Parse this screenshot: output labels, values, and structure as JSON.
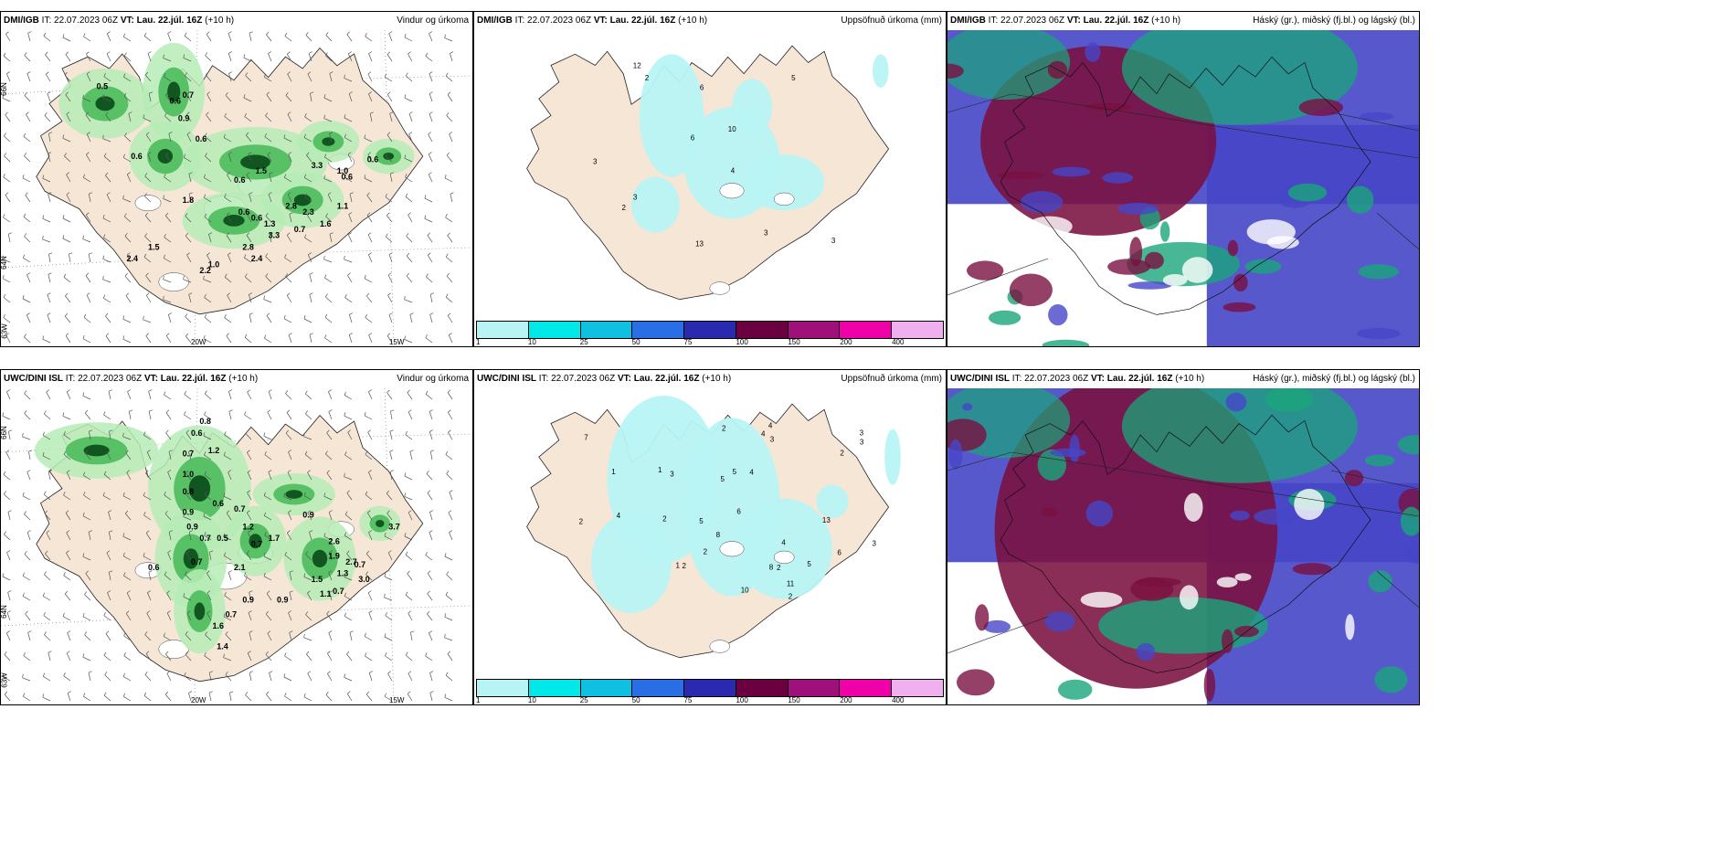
{
  "panels": [
    {
      "id": "top-left",
      "model": "DMI/IGB",
      "it_label": "IT:",
      "it_value": "22.07.2023 06Z",
      "vt_label": "VT:",
      "vt_value": "Lau. 22.júl. 16Z",
      "lead": "(+10 h)",
      "product": "Vindur og úrkoma",
      "lat_labels": [
        "66N",
        "64N",
        "63W"
      ],
      "lon_labels": [
        "20W",
        "15W"
      ],
      "values": [
        "0.5",
        "0.6",
        "0.7",
        "0.9",
        "0.6",
        "0.6",
        "1.8",
        "3.3",
        "1.0",
        "0.6",
        "0.6",
        "1.5",
        "0.6",
        "0.6",
        "1.3",
        "2.8",
        "3.3",
        "2.3",
        "1.1",
        "0.7",
        "1.6",
        "0.6",
        "2.8",
        "2.4",
        "2.2",
        "1.0",
        "1.5",
        "2.4"
      ]
    },
    {
      "id": "top-middle",
      "model": "DMI/IGB",
      "it_label": "IT:",
      "it_value": "22.07.2023 06Z",
      "vt_label": "VT:",
      "vt_value": "Lau. 22.júl. 16Z",
      "lead": "(+10 h)",
      "product": "Uppsöfnuð úrkoma (mm)",
      "values": [
        "2",
        "3",
        "4",
        "3",
        "2",
        "12",
        "13",
        "6",
        "3",
        "10",
        "6",
        "3",
        "5"
      ],
      "legend": [
        "1",
        "10",
        "25",
        "50",
        "75",
        "100",
        "150",
        "200",
        "400"
      ],
      "legend_colors": [
        "#b8f4f4",
        "#00e8e8",
        "#10c0e0",
        "#2a6ee6",
        "#2a2ab0",
        "#6a0040",
        "#a0107a",
        "#f000a8",
        "#f0b0f0"
      ]
    },
    {
      "id": "top-right",
      "model": "DMI/IGB",
      "it_label": "IT:",
      "it_value": "22.07.2023 06Z",
      "vt_label": "VT:",
      "vt_value": "Lau. 22.júl. 16Z",
      "lead": "(+10 h)",
      "product": "Háský (gr.), miðský (fj.bl.) og lágský (bl.)"
    },
    {
      "id": "bottom-left",
      "model": "UWC/DINI ISL",
      "it_label": "IT:",
      "it_value": "22.07.2023 06Z",
      "vt_label": "VT:",
      "vt_value": "Lau. 22.júl. 16Z",
      "lead": "(+10 h)",
      "product": "Vindur og úrkoma",
      "lat_labels": [
        "66N",
        "64N",
        "63W"
      ],
      "lon_labels": [
        "20W",
        "15W"
      ],
      "values": [
        "0.8",
        "0.6",
        "0.7",
        "1.2",
        "1.0",
        "0.8",
        "0.9",
        "0.9",
        "0.7",
        "0.6",
        "0.5",
        "0.7",
        "0.6",
        "0.7",
        "1.2",
        "0.7",
        "1.7",
        "2.1",
        "0.9",
        "2.6",
        "1.9",
        "0.7",
        "1.3",
        "2.7",
        "3.0",
        "0.9",
        "1.1",
        "0.9",
        "1.5",
        "0.7",
        "1.6",
        "1.4",
        "0.7",
        "3.7"
      ]
    },
    {
      "id": "bottom-middle",
      "model": "UWC/DINI ISL",
      "it_label": "IT:",
      "it_value": "22.07.2023 06Z",
      "vt_label": "VT:",
      "vt_value": "Lau. 22.júl. 16Z",
      "lead": "(+10 h)",
      "product": "Uppsöfnuð úrkoma (mm)",
      "values": [
        "1",
        "2",
        "2",
        "3",
        "4",
        "3",
        "1",
        "5",
        "5",
        "7",
        "6",
        "2",
        "2",
        "4",
        "3",
        "2",
        "4",
        "6",
        "11",
        "8",
        "5",
        "4",
        "10",
        "3",
        "5",
        "2",
        "8",
        "2",
        "1",
        "3",
        "4",
        "2",
        "13"
      ],
      "legend": [
        "1",
        "10",
        "25",
        "50",
        "75",
        "100",
        "150",
        "200",
        "400"
      ],
      "legend_colors": [
        "#b8f4f4",
        "#00e8e8",
        "#10c0e0",
        "#2a6ee6",
        "#2a2ab0",
        "#6a0040",
        "#a0107a",
        "#f000a8",
        "#f0b0f0"
      ]
    },
    {
      "id": "bottom-right",
      "model": "UWC/DINI ISL",
      "it_label": "IT:",
      "it_value": "22.07.2023 06Z",
      "vt_label": "VT:",
      "vt_value": "Lau. 22.júl. 16Z",
      "lead": "(+10 h)",
      "product": "Háský (gr.), miðský (fj.bl.) og lágský (bl.)"
    }
  ],
  "colors": {
    "land": "#f5e6d6",
    "land_dark": "#e8d6c2",
    "precip_light": "#b6ecb6",
    "precip_mid": "#4cbc5c",
    "precip_dark": "#0a4a1a",
    "accum_light": "#b8f4f4",
    "high_cloud": "#1aa57a",
    "mid_cloud": "#7a1040",
    "low_cloud": "#4646c8"
  }
}
